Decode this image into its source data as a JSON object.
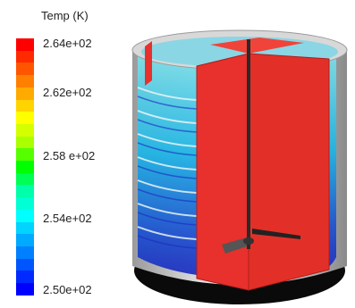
{
  "legend": {
    "title": "Temp (K)",
    "ticks": [
      "2.64e+02",
      "2.62e+02",
      "2.58 e+02",
      "2.54e+02",
      "2.50e+02"
    ],
    "colors": [
      "#ff0000",
      "#ff2a00",
      "#ff5500",
      "#ff8000",
      "#ffaa00",
      "#ffd400",
      "#ffff00",
      "#d4ff00",
      "#aaff00",
      "#55ff00",
      "#00ff00",
      "#00ff55",
      "#00ffaa",
      "#00ffd4",
      "#00ffff",
      "#00d4ff",
      "#00aaff",
      "#0080ff",
      "#0055ff",
      "#002aff",
      "#0000ff"
    ]
  },
  "scene_colors": {
    "baffle": "#e8302c",
    "wall": "#c8c8c8",
    "fluid_deep": "#1a3cc8",
    "fluid_mid": "#1ab4e6",
    "fluid_light": "#7de0e8",
    "bottom": "#0a0a0a",
    "shaft": "#2a2a2a"
  }
}
